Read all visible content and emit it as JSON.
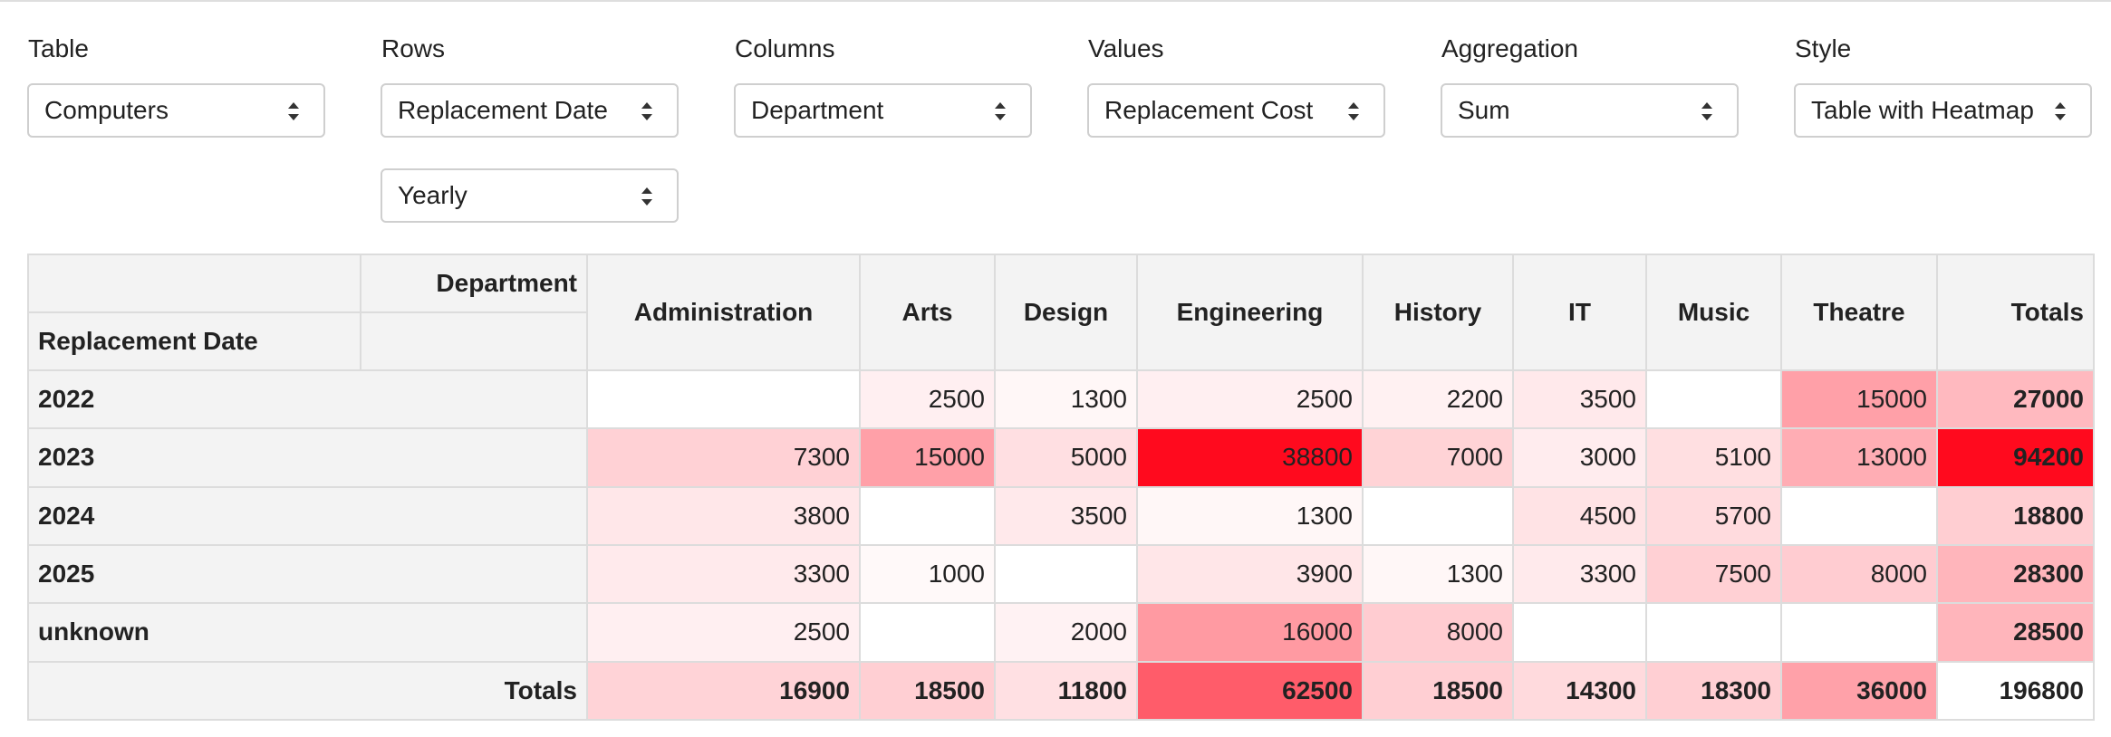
{
  "controls": {
    "table": {
      "label": "Table",
      "value": "Computers"
    },
    "rows": {
      "label": "Rows",
      "value": "Replacement Date",
      "interval": "Yearly"
    },
    "columns": {
      "label": "Columns",
      "value": "Department"
    },
    "values": {
      "label": "Values",
      "value": "Replacement Cost"
    },
    "aggregation": {
      "label": "Aggregation",
      "value": "Sum"
    },
    "style": {
      "label": "Style",
      "value": "Table with Heatmap"
    }
  },
  "pivot": {
    "column_axis_label": "Department",
    "row_axis_label": "Replacement Date",
    "totals_label": "Totals",
    "heat_color": "#ff0a1e",
    "columns": [
      "Administration",
      "Arts",
      "Design",
      "Engineering",
      "History",
      "IT",
      "Music",
      "Theatre"
    ],
    "rows": [
      {
        "label": "2022",
        "values": [
          null,
          2500,
          1300,
          2500,
          2200,
          3500,
          null,
          15000
        ],
        "total": 27000
      },
      {
        "label": "2023",
        "values": [
          7300,
          15000,
          5000,
          38800,
          7000,
          3000,
          5100,
          13000
        ],
        "total": 94200
      },
      {
        "label": "2024",
        "values": [
          3800,
          null,
          3500,
          1300,
          null,
          4500,
          5700,
          null
        ],
        "total": 18800
      },
      {
        "label": "2025",
        "values": [
          3300,
          1000,
          null,
          3900,
          1300,
          3300,
          7500,
          8000
        ],
        "total": 28300
      },
      {
        "label": "unknown",
        "values": [
          2500,
          null,
          2000,
          16000,
          8000,
          null,
          null,
          null
        ],
        "total": 28500
      }
    ],
    "column_totals": [
      16900,
      18500,
      11800,
      62500,
      18500,
      14300,
      18300,
      36000
    ],
    "grand_total": 196800
  }
}
